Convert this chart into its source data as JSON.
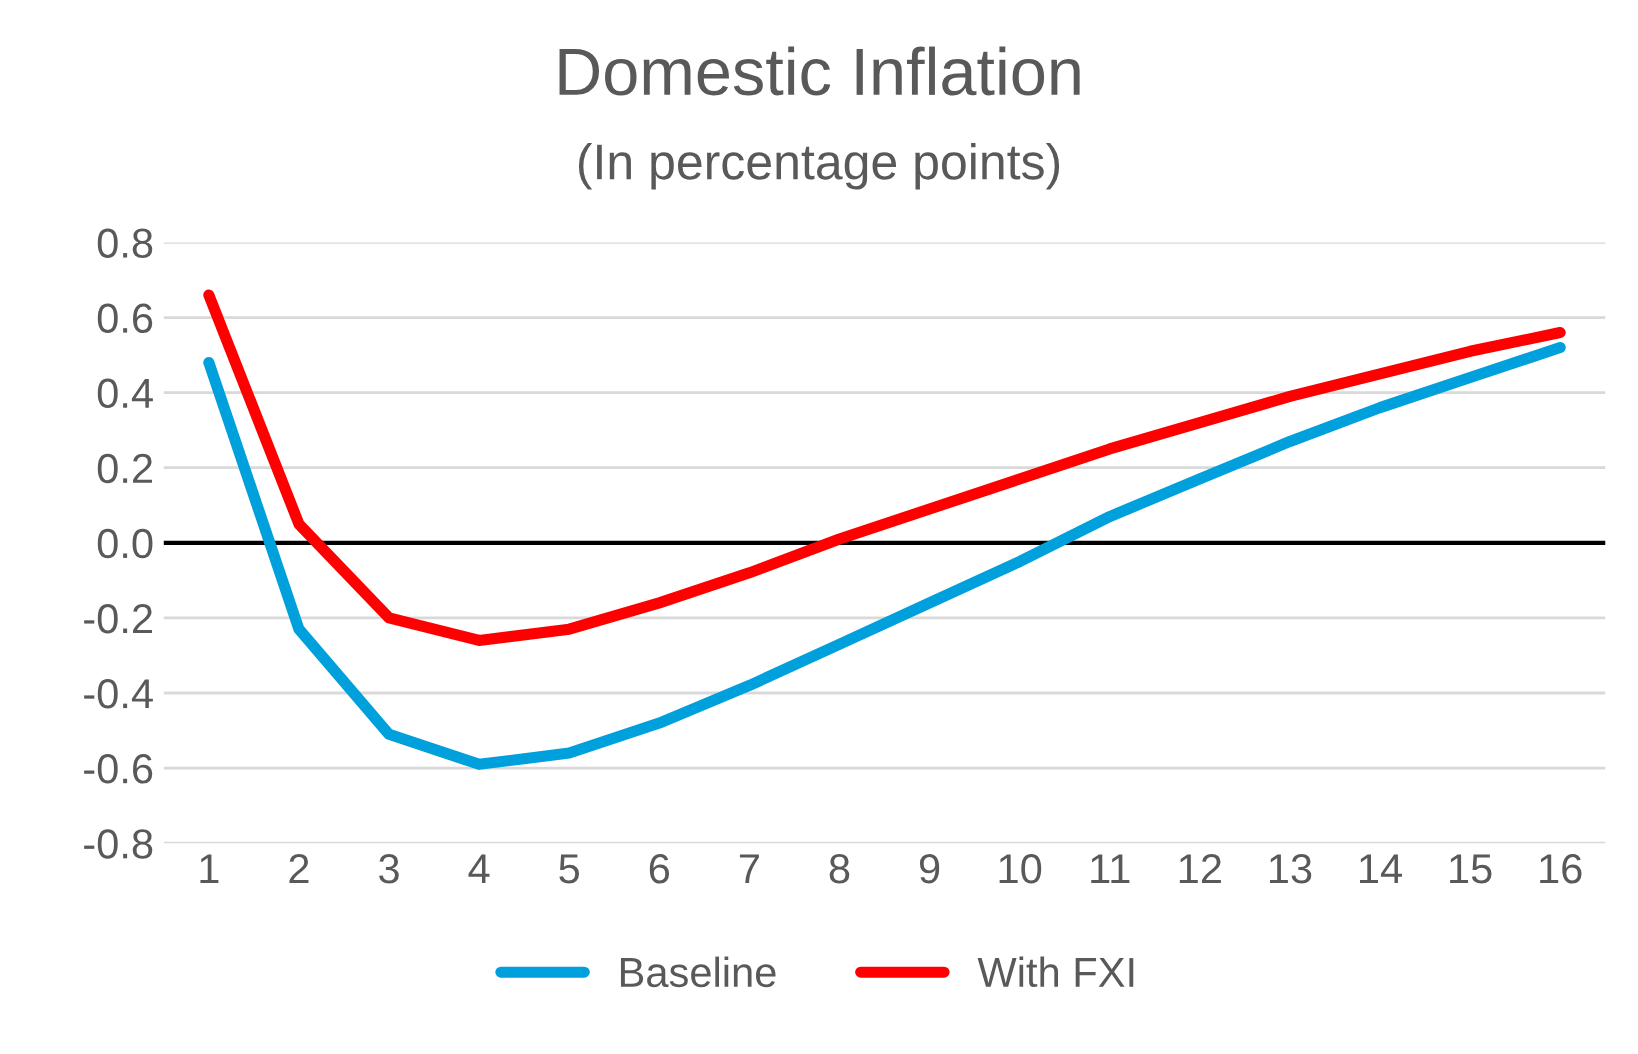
{
  "chart_data": {
    "type": "line",
    "title": "Domestic Inflation",
    "subtitle": "(In percentage points)",
    "categories": [
      "1",
      "2",
      "3",
      "4",
      "5",
      "6",
      "7",
      "8",
      "9",
      "10",
      "11",
      "12",
      "13",
      "14",
      "15",
      "16"
    ],
    "series": [
      {
        "name": "Baseline",
        "color": "#00a0dc",
        "values": [
          0.48,
          -0.23,
          -0.51,
          -0.59,
          -0.56,
          -0.48,
          -0.38,
          -0.27,
          -0.16,
          -0.05,
          0.07,
          0.17,
          0.27,
          0.36,
          0.44,
          0.52
        ]
      },
      {
        "name": "With FXI",
        "color": "#ff0000",
        "values": [
          0.66,
          0.05,
          -0.2,
          -0.26,
          -0.23,
          -0.16,
          -0.08,
          0.01,
          0.09,
          0.17,
          0.25,
          0.32,
          0.39,
          0.45,
          0.51,
          0.56
        ]
      }
    ],
    "ylim": [
      -0.8,
      0.8
    ],
    "yticks": [
      {
        "value": -0.8,
        "label": "-0.8"
      },
      {
        "value": -0.6,
        "label": "-0.6"
      },
      {
        "value": -0.4,
        "label": "-0.4"
      },
      {
        "value": -0.2,
        "label": "-0.2"
      },
      {
        "value": 0,
        "label": "0.0"
      },
      {
        "value": 0.2,
        "label": "0.2"
      },
      {
        "value": 0.4,
        "label": "0.4"
      },
      {
        "value": 0.6,
        "label": "0.6"
      },
      {
        "value": 0.8,
        "label": "0.8"
      }
    ],
    "ref_lines": [
      {
        "axis": "y",
        "value": 0,
        "color": "#000000"
      }
    ],
    "grid": "y",
    "legend": "bottom",
    "marker": "none",
    "line_style": "solid"
  }
}
